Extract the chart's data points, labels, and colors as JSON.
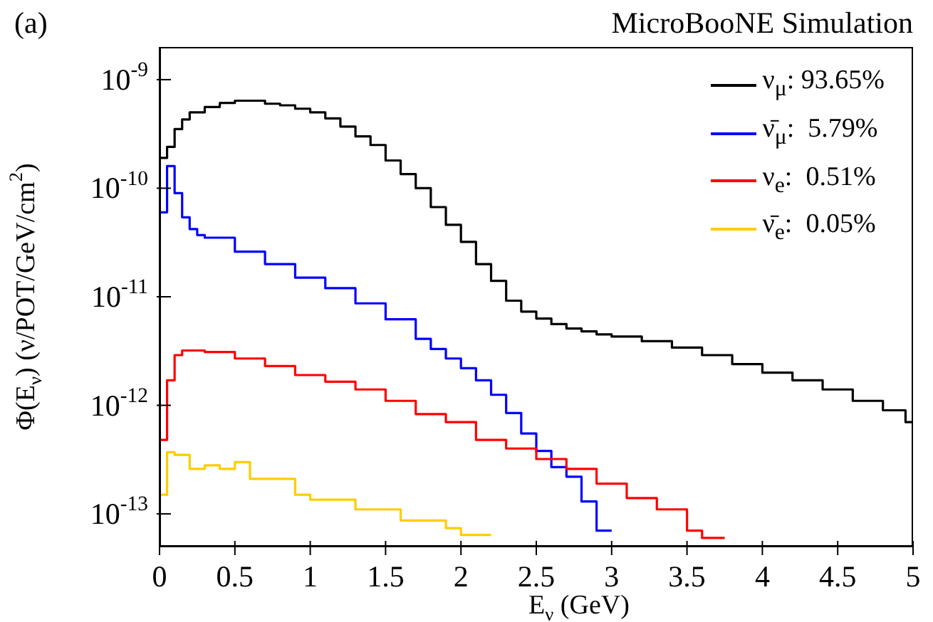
{
  "chart_data": {
    "type": "step",
    "title": "MicroBooNE Simulation",
    "annotations": [
      "(a)"
    ],
    "xlabel": "E$_{ν}$ (GeV)",
    "ylabel": "Φ(E$_{ν}$) (ν/POT/GeV/cm$^{2}$)",
    "log": true,
    "legend": "top right",
    "xlim": [
      0,
      5
    ],
    "xticks": [
      0,
      0.5,
      1,
      1.5,
      2,
      2.5,
      3,
      3.5,
      4,
      4.5,
      5
    ],
    "ylim": [
      5e-14,
      2e-09
    ],
    "yticks": [
      {
        "value": 1e-13,
        "label": "10$^{-13}$"
      },
      {
        "value": 1e-12,
        "label": "10$^{-12}$"
      },
      {
        "value": 1e-11,
        "label": "10$^{-11}$"
      },
      {
        "value": 1e-10,
        "label": "10$^{-10}$"
      },
      {
        "value": 1e-09,
        "label": "10$^{-9}$"
      }
    ],
    "series": [
      {
        "name": "ν$_{μ}$: 93.65%",
        "color": "#000000",
        "x": [
          0,
          0.05,
          0.1,
          0.15,
          0.2,
          0.3,
          0.4,
          0.5,
          0.6,
          0.7,
          0.8,
          0.9,
          1.0,
          1.1,
          1.2,
          1.3,
          1.4,
          1.5,
          1.6,
          1.7,
          1.8,
          1.9,
          2.0,
          2.1,
          2.2,
          2.3,
          2.4,
          2.5,
          2.6,
          2.7,
          2.8,
          2.9,
          3.0,
          3.2,
          3.4,
          3.6,
          3.8,
          4.0,
          4.2,
          4.4,
          4.6,
          4.8,
          4.95,
          5
        ],
        "values": [
          1.9e-10,
          2.4e-10,
          3.5e-10,
          4.3e-10,
          5e-10,
          5.6e-10,
          6.1e-10,
          6.4e-10,
          6.4e-10,
          6e-10,
          5.8e-10,
          5.4e-10,
          5e-10,
          4.4e-10,
          3.7e-10,
          3e-10,
          2.5e-10,
          1.8e-10,
          1.35e-10,
          1e-10,
          6.7e-11,
          4.6e-11,
          3.2e-11,
          2e-11,
          1.4e-11,
          9.2e-12,
          7.3e-12,
          6.3e-12,
          5.6e-12,
          5.1e-12,
          4.8e-12,
          4.5e-12,
          4.3e-12,
          3.9e-12,
          3.4e-12,
          2.9e-12,
          2.4e-12,
          2e-12,
          1.7e-12,
          1.4e-12,
          1.1e-12,
          9e-13,
          7e-13,
          7e-13
        ]
      },
      {
        "name": "ν̄$_{μ}$:  5.79%",
        "color": "#0000ff",
        "x": [
          0,
          0.05,
          0.1,
          0.15,
          0.2,
          0.25,
          0.3,
          0.5,
          0.7,
          0.9,
          1.1,
          1.3,
          1.5,
          1.7,
          1.8,
          1.9,
          2.0,
          2.1,
          2.2,
          2.3,
          2.4,
          2.5,
          2.6,
          2.7,
          2.8,
          2.9,
          3.0
        ],
        "values": [
          6e-11,
          1.6e-10,
          9e-11,
          5.4e-11,
          4.2e-11,
          3.7e-11,
          3.5e-11,
          2.6e-11,
          2e-11,
          1.5e-11,
          1.2e-11,
          8.7e-12,
          6.2e-12,
          4.1e-12,
          3.3e-12,
          2.7e-12,
          2.2e-12,
          1.7e-12,
          1.25e-12,
          8.5e-13,
          5.5e-13,
          3.8e-13,
          2.7e-13,
          2.2e-13,
          1.3e-13,
          7e-14,
          7e-14
        ]
      },
      {
        "name": "ν$_{e}$:  0.51%",
        "color": "#ff0000",
        "x": [
          0,
          0.05,
          0.1,
          0.15,
          0.3,
          0.5,
          0.7,
          0.9,
          1.1,
          1.3,
          1.5,
          1.7,
          1.9,
          2.1,
          2.3,
          2.5,
          2.7,
          2.9,
          3.1,
          3.3,
          3.5,
          3.6,
          3.75
        ],
        "values": [
          4.8e-13,
          1.7e-12,
          2.9e-12,
          3.2e-12,
          3.1e-12,
          2.7e-12,
          2.3e-12,
          1.9e-12,
          1.65e-12,
          1.4e-12,
          1.1e-12,
          8.3e-13,
          7e-13,
          4.8e-13,
          4e-13,
          3.2e-13,
          2.6e-13,
          1.9e-13,
          1.4e-13,
          1.1e-13,
          7e-14,
          6e-14,
          6e-14
        ]
      },
      {
        "name": "ν̄$_{e}$:  0.05%",
        "color": "#ffcc00",
        "x": [
          0,
          0.05,
          0.1,
          0.2,
          0.3,
          0.4,
          0.5,
          0.6,
          0.8,
          0.9,
          1.0,
          1.3,
          1.6,
          1.9,
          2.0,
          2.2
        ],
        "values": [
          1.5e-13,
          3.7e-13,
          3.5e-13,
          2.6e-13,
          2.8e-13,
          2.6e-13,
          3e-13,
          2.1e-13,
          2.1e-13,
          1.5e-13,
          1.35e-13,
          1.1e-13,
          8.7e-14,
          7.4e-14,
          6.4e-14,
          6.4e-14
        ]
      }
    ]
  }
}
